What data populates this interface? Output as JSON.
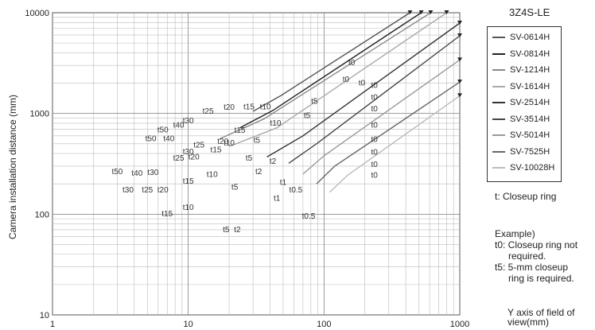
{
  "chart_data": {
    "type": "line",
    "ylabel": "Camera installation distance (mm)",
    "xlabel": "",
    "xscale": "log",
    "yscale": "log",
    "xlim": [
      1,
      1000
    ],
    "ylim": [
      10,
      10000
    ],
    "grid": true,
    "x_ticks": [
      "1",
      "10",
      "100",
      "1000"
    ],
    "y_ticks": [
      "10",
      "100",
      "1000",
      "10000"
    ],
    "legend_title": "3Z4S-LE",
    "legend_position": "right",
    "series": [
      {
        "name": "SV-0614H",
        "color": "#555555",
        "x": [
          30,
          48,
          430
        ],
        "y": [
          1050,
          1500,
          10000
        ]
      },
      {
        "name": "SV-0814H",
        "color": "#222222",
        "x": [
          24,
          42,
          520
        ],
        "y": [
          720,
          1070,
          10000
        ]
      },
      {
        "name": "SV-1214H",
        "color": "#888888",
        "x": [
          17,
          36,
          610
        ],
        "y": [
          560,
          880,
          10000
        ]
      },
      {
        "name": "SV-1614H",
        "color": "#aaaaaa",
        "x": [
          20,
          45,
          800
        ],
        "y": [
          470,
          720,
          10000
        ]
      },
      {
        "name": "SV-2514H",
        "color": "#333333",
        "x": [
          38,
          70,
          1000
        ],
        "y": [
          370,
          600,
          7900
        ]
      },
      {
        "name": "SV-3514H",
        "color": "#444444",
        "x": [
          55,
          90,
          1000
        ],
        "y": [
          320,
          510,
          5900
        ]
      },
      {
        "name": "SV-5014H",
        "color": "#999999",
        "x": [
          70,
          100,
          1000
        ],
        "y": [
          250,
          380,
          3400
        ]
      },
      {
        "name": "SV-7525H",
        "color": "#666666",
        "x": [
          88,
          120,
          1000
        ],
        "y": [
          200,
          300,
          2050
        ]
      },
      {
        "name": "SV-10028H",
        "color": "#bbbbbb",
        "x": [
          110,
          150,
          1000
        ],
        "y": [
          165,
          245,
          1500
        ]
      }
    ],
    "annotations": [
      {
        "text": "t0",
        "x": 160,
        "y": 3000
      },
      {
        "text": "t0",
        "x": 145,
        "y": 2050
      },
      {
        "text": "t0",
        "x": 190,
        "y": 1900
      },
      {
        "text": "t0",
        "x": 235,
        "y": 1800
      },
      {
        "text": "t0",
        "x": 235,
        "y": 1370
      },
      {
        "text": "t0",
        "x": 235,
        "y": 1050
      },
      {
        "text": "t0",
        "x": 235,
        "y": 720
      },
      {
        "text": "t0",
        "x": 235,
        "y": 520
      },
      {
        "text": "t0",
        "x": 235,
        "y": 390
      },
      {
        "text": "t0",
        "x": 235,
        "y": 295
      },
      {
        "text": "t0",
        "x": 235,
        "y": 230
      },
      {
        "text": "t5",
        "x": 85,
        "y": 1250
      },
      {
        "text": "t5",
        "x": 75,
        "y": 900
      },
      {
        "text": "t5",
        "x": 32,
        "y": 510
      },
      {
        "text": "t5",
        "x": 28,
        "y": 340
      },
      {
        "text": "t5",
        "x": 22,
        "y": 175
      },
      {
        "text": "t5",
        "x": 19,
        "y": 66
      },
      {
        "text": "t2",
        "x": 42,
        "y": 315
      },
      {
        "text": "t2",
        "x": 33,
        "y": 250
      },
      {
        "text": "t2",
        "x": 23,
        "y": 66
      },
      {
        "text": "t1",
        "x": 50,
        "y": 195
      },
      {
        "text": "t1",
        "x": 45,
        "y": 136
      },
      {
        "text": "t0.5",
        "x": 62,
        "y": 165
      },
      {
        "text": "t0.5",
        "x": 77,
        "y": 90
      },
      {
        "text": "t10",
        "x": 37,
        "y": 1100
      },
      {
        "text": "t10",
        "x": 44,
        "y": 760
      },
      {
        "text": "t10",
        "x": 20,
        "y": 480
      },
      {
        "text": "t10",
        "x": 15,
        "y": 235
      },
      {
        "text": "t10",
        "x": 10,
        "y": 110
      },
      {
        "text": "t15",
        "x": 28,
        "y": 1100
      },
      {
        "text": "t15",
        "x": 24,
        "y": 640
      },
      {
        "text": "t15",
        "x": 16,
        "y": 410
      },
      {
        "text": "t15",
        "x": 10,
        "y": 200
      },
      {
        "text": "t15",
        "x": 7,
        "y": 95
      },
      {
        "text": "t20",
        "x": 20,
        "y": 1090
      },
      {
        "text": "t20",
        "x": 18,
        "y": 500
      },
      {
        "text": "t20",
        "x": 11,
        "y": 350
      },
      {
        "text": "t20",
        "x": 6.5,
        "y": 165
      },
      {
        "text": "t25",
        "x": 14,
        "y": 990
      },
      {
        "text": "t25",
        "x": 12,
        "y": 460
      },
      {
        "text": "t25",
        "x": 8.5,
        "y": 340
      },
      {
        "text": "t25",
        "x": 5,
        "y": 165
      },
      {
        "text": "t30",
        "x": 10,
        "y": 800
      },
      {
        "text": "t30",
        "x": 10,
        "y": 395
      },
      {
        "text": "t30",
        "x": 5.5,
        "y": 245
      },
      {
        "text": "t30",
        "x": 3.6,
        "y": 165
      },
      {
        "text": "t40",
        "x": 8.5,
        "y": 720
      },
      {
        "text": "t40",
        "x": 7.2,
        "y": 530
      },
      {
        "text": "t40",
        "x": 4.2,
        "y": 240
      },
      {
        "text": "t50",
        "x": 6.5,
        "y": 650
      },
      {
        "text": "t50",
        "x": 5.3,
        "y": 530
      },
      {
        "text": "t50",
        "x": 3.0,
        "y": 250
      }
    ]
  },
  "legend": {
    "title": "3Z4S-LE",
    "items": [
      {
        "label": "SV-0614H",
        "color": "#555555"
      },
      {
        "label": "SV-0814H",
        "color": "#222222"
      },
      {
        "label": "SV-1214H",
        "color": "#888888"
      },
      {
        "label": "SV-1614H",
        "color": "#aaaaaa"
      },
      {
        "label": "SV-2514H",
        "color": "#333333"
      },
      {
        "label": "SV-3514H",
        "color": "#444444"
      },
      {
        "label": "SV-5014H",
        "color": "#999999"
      },
      {
        "label": "SV-7525H",
        "color": "#666666"
      },
      {
        "label": "SV-10028H",
        "color": "#bbbbbb"
      }
    ]
  },
  "notes": {
    "closeup": "t: Closeup ring",
    "example_title": "Example)",
    "example_line1": "t0: Closeup ring not",
    "example_line2": "required.",
    "example_line3": "t5: 5-mm closeup",
    "example_line4": "ring is required.",
    "yaxis_line1": "Y axis of field of",
    "yaxis_line2": "view(mm)"
  }
}
